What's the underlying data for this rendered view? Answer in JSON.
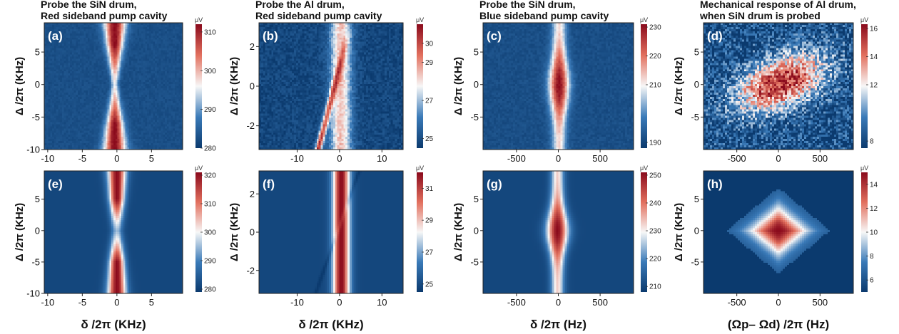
{
  "panel_titles": [
    [
      "Probe the SiN drum,",
      "Red sideband pump cavity"
    ],
    [
      "Probe the Al drum,",
      "Red sideband pump cavity"
    ],
    [
      "Probe the SiN drum,",
      "Blue sideband pump cavity"
    ],
    [
      "Mechanical response of Al drum,",
      "when SiN drum is probed"
    ]
  ],
  "y_axis_label": "Δ /2π (KHz)",
  "x_axis_labels": [
    "δ /2π (KHz)",
    "δ /2π (KHz)",
    "δ /2π (Hz)",
    "(Ωp– Ωd) /2π (Hz)"
  ],
  "colorbar_unit": "μV",
  "colors": {
    "low": "#0b3a6e",
    "mid": "#f7f7f7",
    "high": "#8a0a1c",
    "text_on_map": "#ffffff"
  },
  "chart_data": [
    {
      "panel": "(a)",
      "type": "heatmap",
      "xlim": [
        -10.5,
        9.5
      ],
      "ylim": [
        -10,
        9.5
      ],
      "xticks": [
        -10,
        -5,
        0,
        5
      ],
      "yticks": [
        -10,
        -5,
        0,
        5
      ],
      "colorbar": {
        "min": 280,
        "max": 312,
        "ticks": [
          280,
          290,
          300,
          310
        ]
      },
      "pattern": "hourglass"
    },
    {
      "panel": "(b)",
      "type": "heatmap",
      "xlim": [
        -19,
        15
      ],
      "ylim": [
        -3.2,
        3.2
      ],
      "xticks": [
        -10,
        0,
        10
      ],
      "yticks": [
        -2,
        0,
        2
      ],
      "colorbar": {
        "min": 24.5,
        "max": 31,
        "ticks": [
          25,
          27,
          29,
          30
        ]
      },
      "pattern": "diagonal"
    },
    {
      "panel": "(c)",
      "type": "heatmap",
      "xlim": [
        -900,
        900
      ],
      "ylim": [
        -10,
        9.5
      ],
      "xticks": [
        -500,
        0,
        500
      ],
      "yticks": [
        -5,
        0,
        5
      ],
      "colorbar": {
        "min": 188,
        "max": 231,
        "ticks": [
          190,
          210,
          220,
          230
        ]
      },
      "pattern": "spindle"
    },
    {
      "panel": "(d)",
      "type": "heatmap",
      "xlim": [
        -900,
        900
      ],
      "ylim": [
        -10,
        9.5
      ],
      "xticks": [
        -500,
        0,
        500
      ],
      "yticks": [
        -5,
        0,
        5
      ],
      "colorbar": {
        "min": 7.5,
        "max": 16.3,
        "ticks": [
          8,
          12,
          14,
          16
        ]
      },
      "pattern": "noisyblob"
    },
    {
      "panel": "(e)",
      "type": "heatmap",
      "xlim": [
        -10.5,
        9.5
      ],
      "ylim": [
        -10,
        9.5
      ],
      "xticks": [
        -10,
        -5,
        0,
        5
      ],
      "yticks": [
        -10,
        -5,
        0,
        5
      ],
      "colorbar": {
        "min": 279,
        "max": 321,
        "ticks": [
          280,
          290,
          300,
          310,
          320
        ]
      },
      "pattern": "hourglass_smooth"
    },
    {
      "panel": "(f)",
      "type": "heatmap",
      "xlim": [
        -19,
        15
      ],
      "ylim": [
        -3.2,
        3.2
      ],
      "xticks": [
        -10,
        0,
        10
      ],
      "yticks": [
        -2,
        0,
        2
      ],
      "colorbar": {
        "min": 24.5,
        "max": 32,
        "ticks": [
          25,
          27,
          29,
          31
        ]
      },
      "pattern": "stripe"
    },
    {
      "panel": "(g)",
      "type": "heatmap",
      "xlim": [
        -900,
        900
      ],
      "ylim": [
        -10,
        9.5
      ],
      "xticks": [
        -500,
        0,
        500
      ],
      "yticks": [
        -5,
        0,
        5
      ],
      "colorbar": {
        "min": 208,
        "max": 251,
        "ticks": [
          210,
          220,
          230,
          240,
          250
        ]
      },
      "pattern": "spindle_smooth"
    },
    {
      "panel": "(h)",
      "type": "heatmap",
      "xlim": [
        -900,
        900
      ],
      "ylim": [
        -10,
        9.5
      ],
      "xticks": [
        -500,
        0,
        500
      ],
      "yticks": [
        -5,
        0,
        5
      ],
      "colorbar": {
        "min": 5,
        "max": 15,
        "ticks": [
          6,
          8,
          10,
          12,
          14
        ]
      },
      "pattern": "diamond"
    }
  ]
}
